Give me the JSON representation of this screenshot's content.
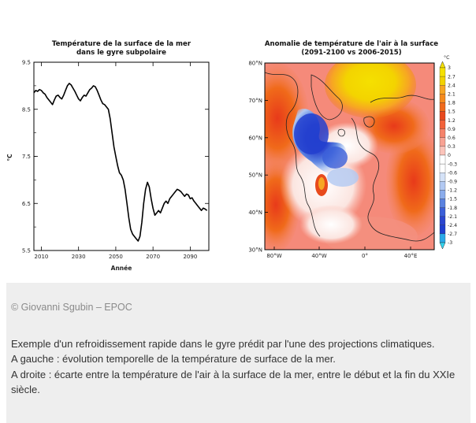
{
  "chart_data": [
    {
      "type": "line",
      "title_line1": "Température de la surface de la mer",
      "title_line2": "dans le gyre subpolaire",
      "xlabel": "Année",
      "ylabel": "°C",
      "xlim": [
        2006,
        2100
      ],
      "ylim": [
        5.5,
        9.5
      ],
      "x_ticks": [
        "2010",
        "2030",
        "2050",
        "2070",
        "2090"
      ],
      "x_tick_values": [
        2010,
        2030,
        2050,
        2070,
        2090
      ],
      "y_ticks": [
        "9.5",
        "8.5",
        "7.5",
        "6.5",
        "5.5"
      ],
      "y_tick_values": [
        9.5,
        8.5,
        7.5,
        6.5,
        5.5
      ],
      "grid": false,
      "x": [
        2006,
        2007,
        2008,
        2009,
        2010,
        2011,
        2012,
        2013,
        2014,
        2015,
        2016,
        2017,
        2018,
        2019,
        2020,
        2021,
        2022,
        2023,
        2024,
        2025,
        2026,
        2027,
        2028,
        2029,
        2030,
        2031,
        2032,
        2033,
        2034,
        2035,
        2036,
        2037,
        2038,
        2039,
        2040,
        2041,
        2042,
        2043,
        2044,
        2045,
        2046,
        2047,
        2048,
        2049,
        2050,
        2051,
        2052,
        2053,
        2054,
        2055,
        2056,
        2057,
        2058,
        2059,
        2060,
        2061,
        2062,
        2063,
        2064,
        2065,
        2066,
        2067,
        2068,
        2069,
        2070,
        2071,
        2072,
        2073,
        2074,
        2075,
        2076,
        2077,
        2078,
        2079,
        2080,
        2081,
        2082,
        2083,
        2084,
        2085,
        2086,
        2087,
        2088,
        2089,
        2090,
        2091,
        2092,
        2093,
        2094,
        2095,
        2096,
        2097,
        2098,
        2099
      ],
      "y": [
        8.85,
        8.9,
        8.88,
        8.92,
        8.9,
        8.85,
        8.82,
        8.75,
        8.7,
        8.65,
        8.6,
        8.7,
        8.78,
        8.8,
        8.75,
        8.72,
        8.8,
        8.9,
        9.0,
        9.05,
        9.02,
        8.95,
        8.88,
        8.8,
        8.72,
        8.68,
        8.75,
        8.8,
        8.78,
        8.85,
        8.92,
        8.95,
        9.0,
        8.98,
        8.9,
        8.8,
        8.7,
        8.62,
        8.6,
        8.55,
        8.5,
        8.3,
        8.0,
        7.7,
        7.5,
        7.3,
        7.15,
        7.1,
        7.0,
        6.8,
        6.5,
        6.2,
        5.95,
        5.85,
        5.8,
        5.75,
        5.7,
        5.8,
        6.1,
        6.5,
        6.8,
        6.95,
        6.85,
        6.6,
        6.4,
        6.25,
        6.3,
        6.35,
        6.3,
        6.4,
        6.5,
        6.55,
        6.5,
        6.6,
        6.65,
        6.7,
        6.75,
        6.8,
        6.78,
        6.75,
        6.7,
        6.65,
        6.7,
        6.68,
        6.6,
        6.62,
        6.55,
        6.5,
        6.45,
        6.4,
        6.35,
        6.4,
        6.38,
        6.35
      ],
      "color": "#000000"
    },
    {
      "type": "heatmap",
      "title_line1": "Anomalie de température de l'air à la surface",
      "title_line2": "(2091-2100 vs 2006-2015)",
      "x_ticks": [
        "80°W",
        "40°W",
        "0°",
        "40°E"
      ],
      "y_ticks": [
        "80°N",
        "70°N",
        "60°N",
        "50°N",
        "40°N",
        "30°N"
      ],
      "colorbar_unit": "°C",
      "colorbar_levels": [
        "3",
        "2.7",
        "2.4",
        "2.1",
        "1.8",
        "1.5",
        "1.2",
        "0.9",
        "0.6",
        "0.3",
        "0",
        "-0.3",
        "-0.6",
        "-0.9",
        "-1.2",
        "-1.5",
        "-1.8",
        "-2.1",
        "-2.4",
        "-2.7",
        "-3"
      ],
      "colorbar_colors": [
        "#f5e000",
        "#f2d200",
        "#f7a623",
        "#f58a1c",
        "#f06a1a",
        "#e8481c",
        "#f2623a",
        "#f5826a",
        "#f8a293",
        "#fbc4ba",
        "#ffffff",
        "#ffffff",
        "#d5e2f7",
        "#b2c9f2",
        "#8aaceb",
        "#5b82e0",
        "#3b5fd9",
        "#2b46cf",
        "#1f3fd0",
        "#2aa9e8",
        "#33d5f0"
      ]
    }
  ],
  "caption": {
    "credit": "© Giovanni Sgubin – EPOC",
    "line1": "Exemple d'un refroidissement rapide dans le gyre prédit par l'une des projections climatiques.",
    "line2": "A gauche : évolution temporelle de la température de surface de la mer.",
    "line3": "A droite : écarte entre la température de l'air à la surface de la mer, entre le début et la fin du XXIe siècle."
  }
}
